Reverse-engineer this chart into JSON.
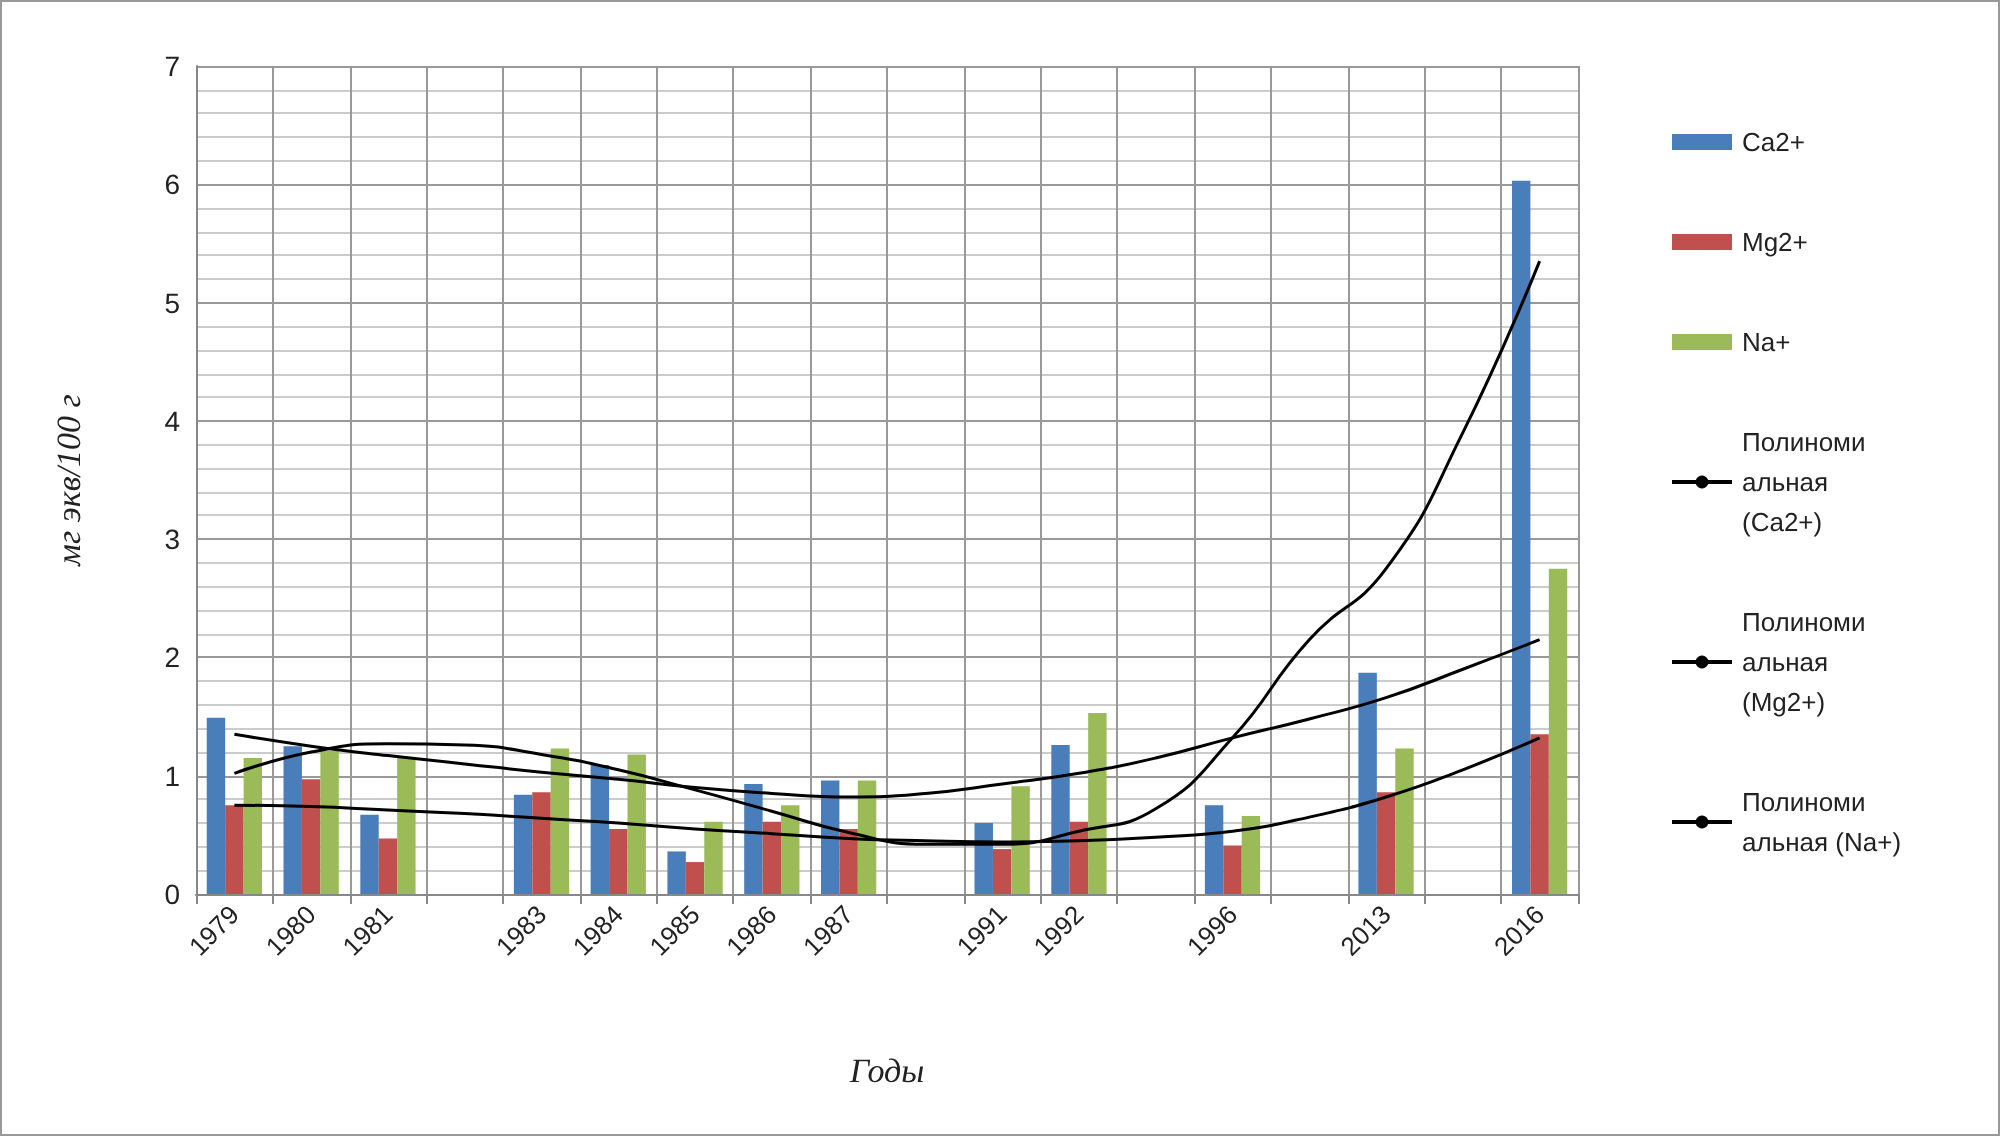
{
  "chart_data": {
    "type": "bar",
    "xlabel": "Годы",
    "ylabel": "мг экв/100 г",
    "categories": [
      "1979",
      "1980",
      "1981",
      null,
      "1983",
      "1984",
      "1985",
      "1986",
      "1987",
      null,
      "1991",
      "1992",
      null,
      "1996",
      null,
      "2013",
      null,
      "2016"
    ],
    "series": [
      {
        "name": "Ca2+",
        "color": "#4a7ebb",
        "values": [
          1.49,
          1.25,
          0.67,
          null,
          0.84,
          1.09,
          0.36,
          0.93,
          0.96,
          null,
          0.6,
          1.26,
          null,
          0.75,
          null,
          1.87,
          null,
          6.03
        ]
      },
      {
        "name": "Mg2+",
        "color": "#c0504d",
        "values": [
          0.75,
          0.97,
          0.47,
          null,
          0.86,
          0.55,
          0.27,
          0.61,
          0.55,
          null,
          0.38,
          0.61,
          null,
          0.41,
          null,
          0.86,
          null,
          1.35
        ]
      },
      {
        "name": "Na+",
        "color": "#9bbb59",
        "values": [
          1.15,
          1.21,
          1.15,
          null,
          1.23,
          1.18,
          0.61,
          0.75,
          0.96,
          null,
          0.91,
          1.53,
          null,
          0.66,
          null,
          1.23,
          null,
          2.75
        ]
      },
      {
        "name": "Полиномиальная (Ca2+)",
        "type": "line",
        "color": "#000000",
        "marker": "none",
        "values": [
          1.02,
          1.2,
          1.27,
          1.26,
          1.18,
          1.05,
          0.88,
          0.7,
          0.52,
          0.42,
          0.42,
          0.53,
          0.72,
          1.32,
          2.15,
          2.75,
          3.9,
          5.35
        ]
      },
      {
        "name": "Полиномиальная (Mg2+)",
        "type": "line",
        "color": "#000000",
        "marker": "none",
        "values": [
          0.75,
          0.74,
          0.71,
          0.68,
          0.64,
          0.6,
          0.55,
          0.51,
          0.47,
          0.45,
          0.44,
          0.45,
          0.48,
          0.53,
          0.65,
          0.82,
          1.05,
          1.32
        ]
      },
      {
        "name": "Полиномиальная (Na+)",
        "type": "line",
        "color": "#000000",
        "marker": "none",
        "values": [
          1.35,
          1.25,
          1.17,
          1.1,
          1.03,
          0.97,
          0.9,
          0.85,
          0.82,
          0.85,
          0.93,
          1.02,
          1.15,
          1.32,
          1.48,
          1.66,
          1.9,
          2.15
        ]
      }
    ],
    "ylim": [
      0,
      7
    ],
    "yticks": [
      0,
      1,
      2,
      3,
      4,
      5,
      6,
      7
    ],
    "grid": true,
    "legend": "right"
  }
}
